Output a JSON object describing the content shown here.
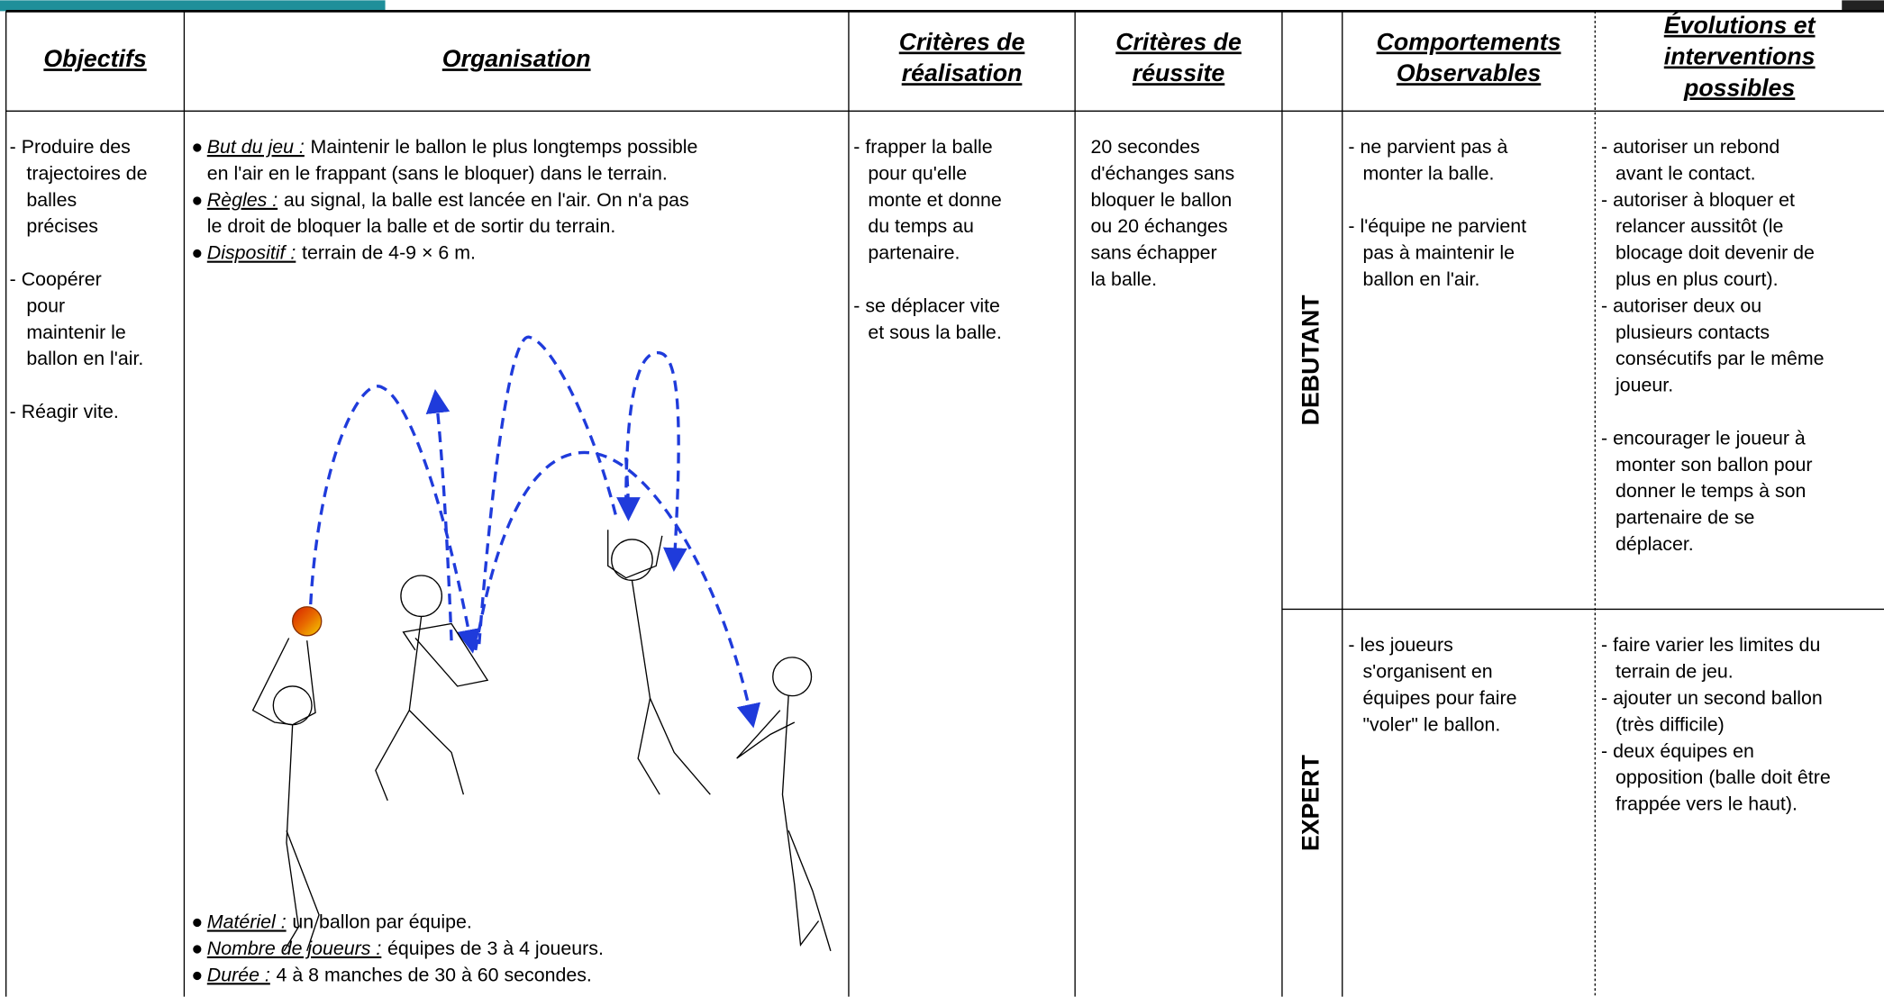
{
  "header": {
    "columns": [
      [
        "Objectifs"
      ],
      [
        "Organisation"
      ],
      [
        "Critères de",
        "réalisation"
      ],
      [
        "Critères de",
        "réussite"
      ],
      [
        "Comportements",
        "Observables"
      ],
      [
        "Évolutions et",
        "interventions",
        "possibles"
      ]
    ]
  },
  "objectifs": [
    [
      "- Produire des",
      "trajectoires de",
      "balles",
      "précises"
    ],
    [
      "- Coopérer",
      "pour",
      "maintenir le",
      "ballon en l'air."
    ],
    [
      "- Réagir vite."
    ]
  ],
  "organisation": {
    "top": [
      {
        "label": "But du jeu :",
        "lines": [
          "Maintenir le ballon le plus longtemps possible",
          "en l'air en le frappant (sans le bloquer) dans le terrain."
        ]
      },
      {
        "label": "Règles :",
        "lines": [
          "au signal, la balle est lancée en l'air. On n'a pas",
          "le droit de bloquer la balle et de sortir du terrain."
        ]
      },
      {
        "label": "Dispositif :",
        "lines": [
          "terrain de 4-9 × 6 m."
        ]
      }
    ],
    "bottom": [
      {
        "label": "Matériel :",
        "lines": [
          "un ballon par équipe."
        ]
      },
      {
        "label": "Nombre de joueurs :",
        "lines": [
          "équipes de 3 à 4 joueurs."
        ]
      },
      {
        "label": "Durée :",
        "lines": [
          "4 à 8 manches de 30 à 60 secondes."
        ]
      }
    ]
  },
  "realisation": [
    [
      "- frapper la balle",
      "pour qu'elle",
      "monte et donne",
      "du temps au",
      "partenaire."
    ],
    [
      "- se déplacer vite",
      "et sous la balle."
    ]
  ],
  "reussite": [
    [
      "20 secondes",
      "d'échanges sans",
      "bloquer le ballon",
      "ou 20 échanges",
      "sans échapper",
      "la balle."
    ]
  ],
  "levels": [
    {
      "name": "DEBUTANT",
      "comportements": [
        [
          "- ne parvient pas à",
          "monter la balle."
        ],
        [
          "- l'équipe ne parvient",
          "pas à maintenir le",
          "ballon en l'air."
        ]
      ],
      "evolutions": [
        [
          "- autoriser un rebond",
          "avant le contact.",
          "- autoriser à bloquer et",
          "relancer aussitôt (le",
          "blocage doit devenir de",
          "plus en plus court).",
          "- autoriser deux ou",
          "plusieurs contacts",
          "consécutifs par le même",
          "joueur."
        ],
        [
          "- encourager le joueur à",
          "monter son ballon pour",
          "donner le temps à son",
          "partenaire de se",
          "déplacer."
        ]
      ]
    },
    {
      "name": "EXPERT",
      "comportements": [
        [
          "- les joueurs",
          "s'organisent en",
          "équipes pour faire",
          "\"voler\" le ballon."
        ]
      ],
      "evolutions": [
        [
          "- faire varier les limites du",
          "terrain de jeu.",
          "- ajouter un second ballon",
          "(très difficile)",
          "- deux équipes en",
          "opposition (balle doit être",
          "frappée vers le haut)."
        ]
      ]
    }
  ]
}
